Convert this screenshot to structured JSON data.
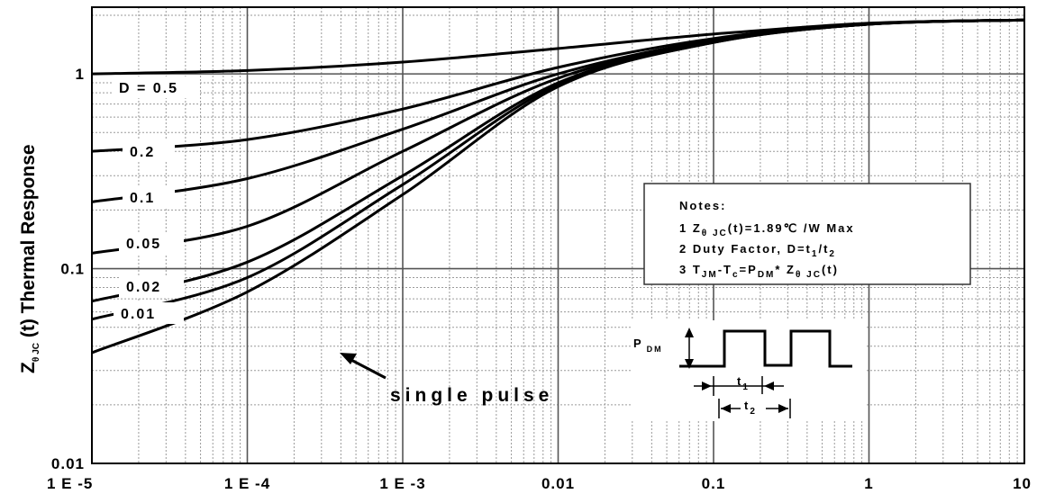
{
  "chart_data": {
    "type": "line",
    "title": "",
    "xlabel": "",
    "ylabel": "Zθ JC (t) Thermal Response",
    "ylabel_parts": {
      "main": "Z",
      "sub1": "θ",
      "sub2": "JC",
      "rest": " (t) Thermal Response"
    },
    "xscale": "log",
    "yscale": "log",
    "xlim": [
      1e-05,
      10
    ],
    "ylim": [
      0.01,
      2.2
    ],
    "grid": true,
    "x_ticks": [
      1e-05,
      0.0001,
      0.001,
      0.01,
      0.1,
      1,
      10
    ],
    "x_tick_labels": [
      "1 E -5",
      "1 E -4",
      "1 E -3",
      "0.01",
      "0.1",
      "1",
      "10"
    ],
    "y_ticks": [
      0.01,
      0.1,
      1
    ],
    "y_tick_labels": [
      "0.01",
      "0.1",
      "1"
    ],
    "series": [
      {
        "name": "D = 0.5",
        "x": [
          1e-05,
          0.0001,
          0.001,
          0.01,
          0.1,
          1,
          10
        ],
        "y": [
          1.0,
          1.04,
          1.15,
          1.35,
          1.6,
          1.82,
          1.89
        ]
      },
      {
        "name": "0.2",
        "x": [
          1e-05,
          0.0001,
          0.001,
          0.01,
          0.1,
          1,
          10
        ],
        "y": [
          0.4,
          0.46,
          0.66,
          1.08,
          1.52,
          1.81,
          1.89
        ]
      },
      {
        "name": "0.1",
        "x": [
          1e-05,
          0.0001,
          0.001,
          0.01,
          0.1,
          1,
          10
        ],
        "y": [
          0.22,
          0.29,
          0.52,
          1.0,
          1.49,
          1.8,
          1.89
        ]
      },
      {
        "name": "0.05",
        "x": [
          1e-05,
          0.0001,
          0.001,
          0.01,
          0.1,
          1,
          10
        ],
        "y": [
          0.12,
          0.165,
          0.4,
          0.95,
          1.47,
          1.8,
          1.89
        ]
      },
      {
        "name": "0.02",
        "x": [
          1e-05,
          0.0001,
          0.001,
          0.01,
          0.1,
          1,
          10
        ],
        "y": [
          0.068,
          0.108,
          0.3,
          0.9,
          1.46,
          1.8,
          1.89
        ]
      },
      {
        "name": "0.01",
        "x": [
          1e-05,
          0.0001,
          0.001,
          0.01,
          0.1,
          1,
          10
        ],
        "y": [
          0.055,
          0.09,
          0.27,
          0.88,
          1.45,
          1.8,
          1.89
        ]
      },
      {
        "name": "single pulse",
        "x": [
          1e-05,
          0.0001,
          0.001,
          0.01,
          0.1,
          1,
          10
        ],
        "y": [
          0.037,
          0.076,
          0.24,
          0.86,
          1.45,
          1.8,
          1.89
        ]
      }
    ],
    "annotations": {
      "single_pulse": "single pulse",
      "pdm": {
        "main": "P",
        "sub": "DM"
      },
      "t1": {
        "main": "t",
        "sub": "1"
      },
      "t2": {
        "main": "t",
        "sub": "2"
      }
    },
    "notes": {
      "title": "Notes:",
      "n1_pre": "1 Z",
      "n1_sub": "θ  JC",
      "n1_post": "(t)=1.89℃ /W Max",
      "n2_pre": "2 Duty Factor, D=t",
      "n2_sub1": "1",
      "n2_mid": "/t",
      "n2_sub2": "2",
      "n3_pre": "3 T",
      "n3_sub1": "JM",
      "n3_mid1": "-T",
      "n3_sub2": "c",
      "n3_mid2": "=P",
      "n3_sub3": "DM",
      "n3_mid3": "* Z",
      "n3_sub4": "θ  JC",
      "n3_post": "(t)"
    }
  }
}
